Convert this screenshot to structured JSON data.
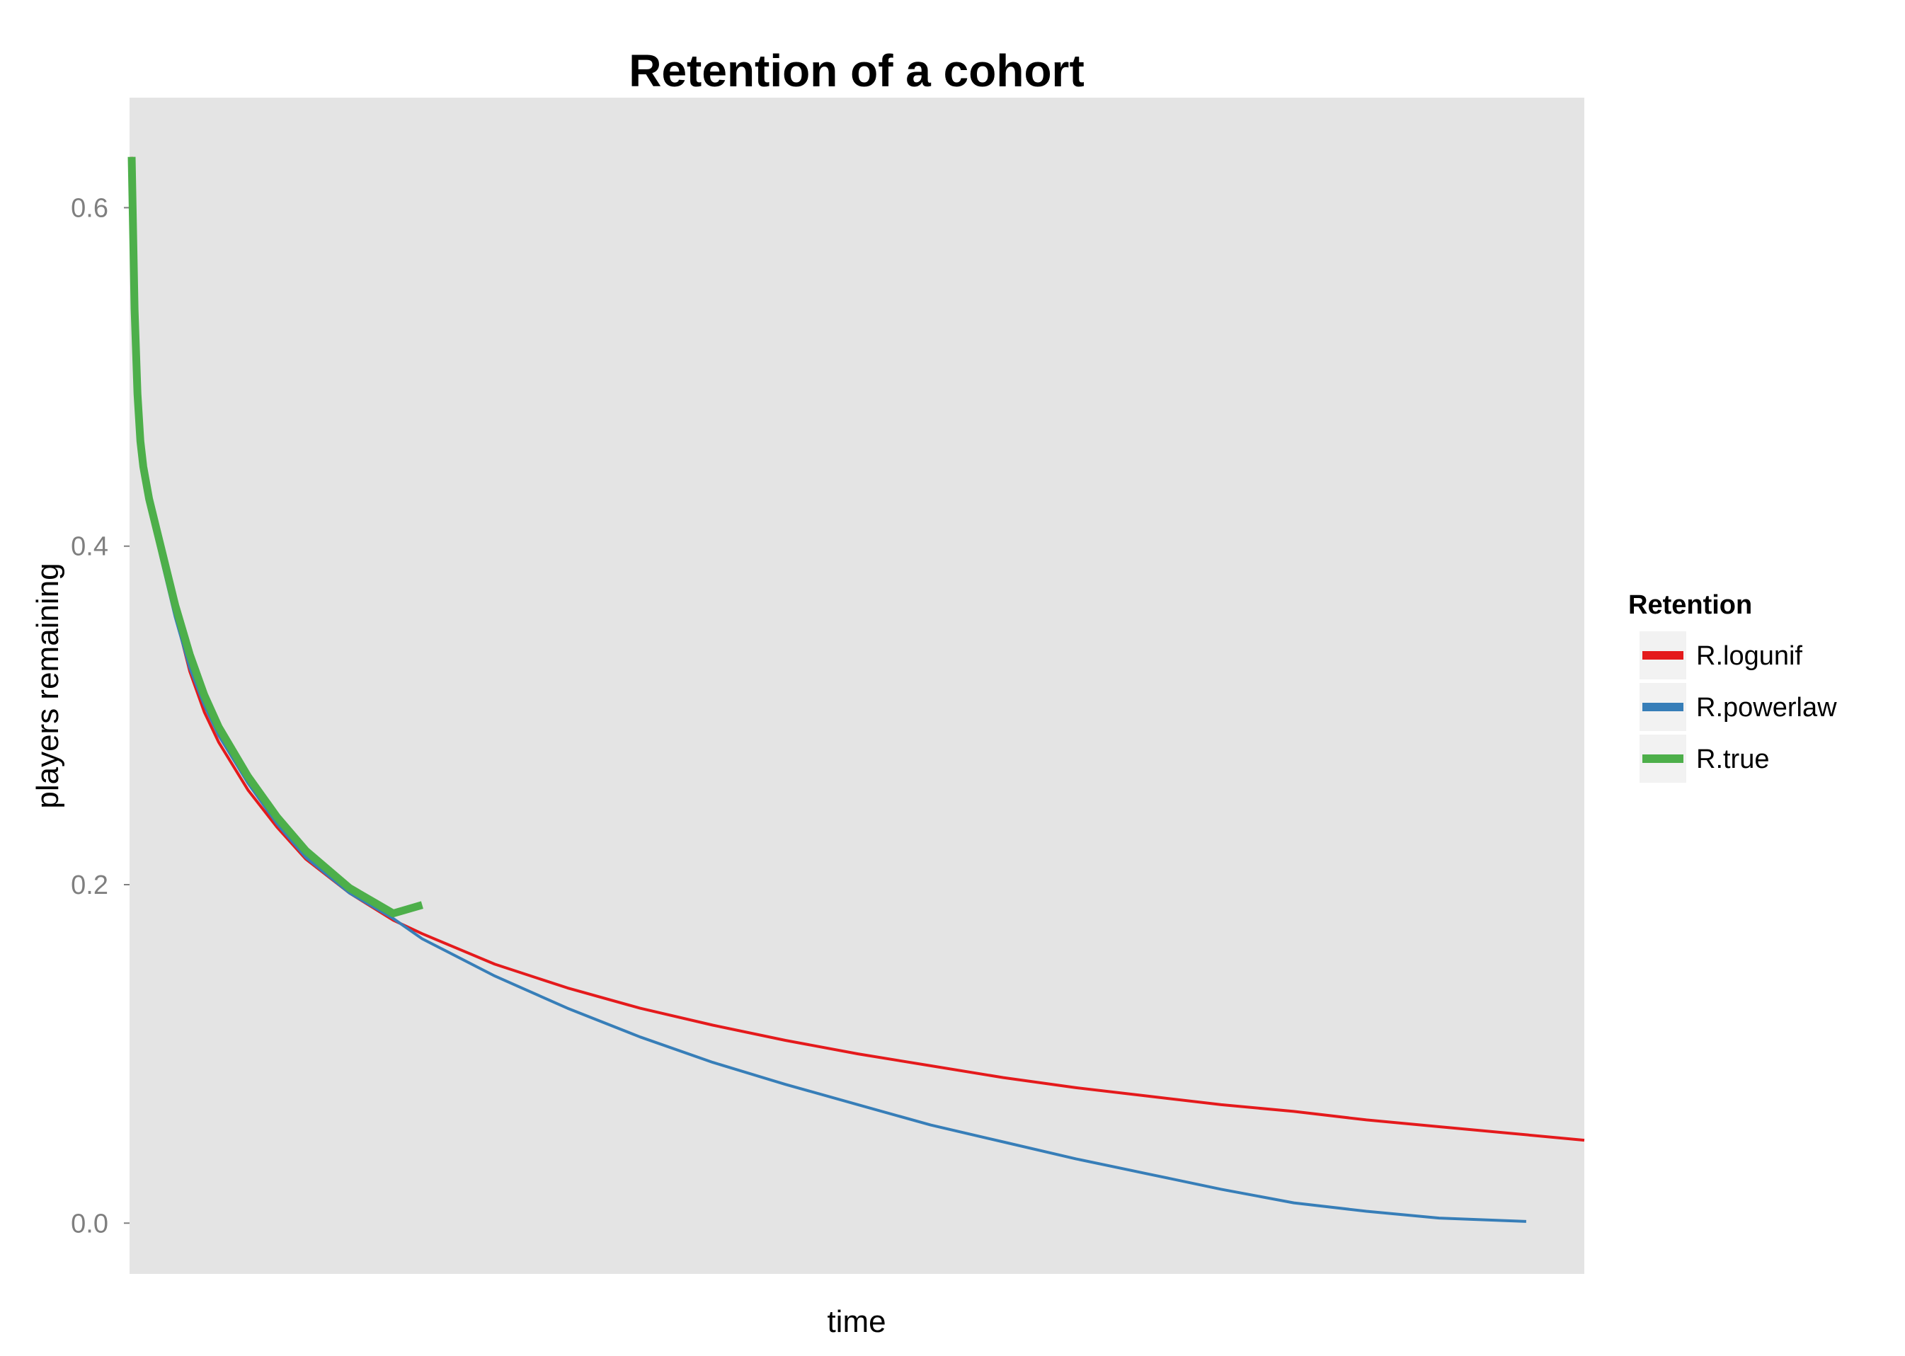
{
  "chart_data": {
    "type": "line",
    "title": "Retention of a cohort",
    "xlabel": "time",
    "ylabel": "players remaining",
    "x_ticks_shown": false,
    "xlim": [
      0,
      1
    ],
    "ylim": [
      -0.03,
      0.665
    ],
    "yticks": [
      {
        "value": 0.0,
        "label": "0.0"
      },
      {
        "value": 0.2,
        "label": "0.2"
      },
      {
        "value": 0.4,
        "label": "0.4"
      },
      {
        "value": 0.6,
        "label": "0.6"
      }
    ],
    "background": "#e4e4e4",
    "grid": false,
    "legend": {
      "title": "Retention",
      "position": "right"
    },
    "series": [
      {
        "name": "R.logunif",
        "color": "#e41a1c",
        "width": 4,
        "x": [
          0.0,
          0.002,
          0.004,
          0.006,
          0.008,
          0.012,
          0.02,
          0.03,
          0.04,
          0.05,
          0.06,
          0.08,
          0.1,
          0.12,
          0.15,
          0.18,
          0.2,
          0.25,
          0.3,
          0.35,
          0.4,
          0.45,
          0.5,
          0.55,
          0.6,
          0.65,
          0.7,
          0.75,
          0.8,
          0.85,
          0.9,
          0.95,
          1.0
        ],
        "y": [
          0.63,
          0.55,
          0.505,
          0.475,
          0.455,
          0.43,
          0.396,
          0.36,
          0.326,
          0.302,
          0.284,
          0.256,
          0.234,
          0.215,
          0.195,
          0.179,
          0.171,
          0.153,
          0.139,
          0.127,
          0.117,
          0.108,
          0.1,
          0.093,
          0.086,
          0.08,
          0.075,
          0.07,
          0.066,
          0.061,
          0.057,
          0.053,
          0.049
        ]
      },
      {
        "name": "R.powerlaw",
        "color": "#377eb8",
        "width": 4,
        "x": [
          0.0,
          0.002,
          0.004,
          0.006,
          0.008,
          0.012,
          0.02,
          0.03,
          0.04,
          0.05,
          0.06,
          0.08,
          0.1,
          0.12,
          0.15,
          0.18,
          0.2,
          0.25,
          0.3,
          0.35,
          0.4,
          0.45,
          0.5,
          0.55,
          0.6,
          0.65,
          0.7,
          0.75,
          0.8,
          0.85,
          0.9,
          0.96
        ],
        "y": [
          0.62,
          0.54,
          0.495,
          0.468,
          0.45,
          0.426,
          0.394,
          0.358,
          0.328,
          0.306,
          0.288,
          0.26,
          0.236,
          0.216,
          0.195,
          0.18,
          0.168,
          0.146,
          0.127,
          0.11,
          0.095,
          0.082,
          0.07,
          0.058,
          0.048,
          0.038,
          0.029,
          0.02,
          0.012,
          0.007,
          0.003,
          0.001
        ]
      },
      {
        "name": "R.true",
        "color": "#4daf4a",
        "width": 11,
        "x": [
          0.0,
          0.002,
          0.004,
          0.006,
          0.008,
          0.012,
          0.02,
          0.03,
          0.04,
          0.05,
          0.06,
          0.08,
          0.1,
          0.12,
          0.15,
          0.18,
          0.2
        ],
        "y": [
          0.63,
          0.54,
          0.49,
          0.462,
          0.447,
          0.428,
          0.4,
          0.365,
          0.336,
          0.312,
          0.293,
          0.264,
          0.24,
          0.22,
          0.198,
          0.183,
          0.188
        ]
      }
    ]
  }
}
